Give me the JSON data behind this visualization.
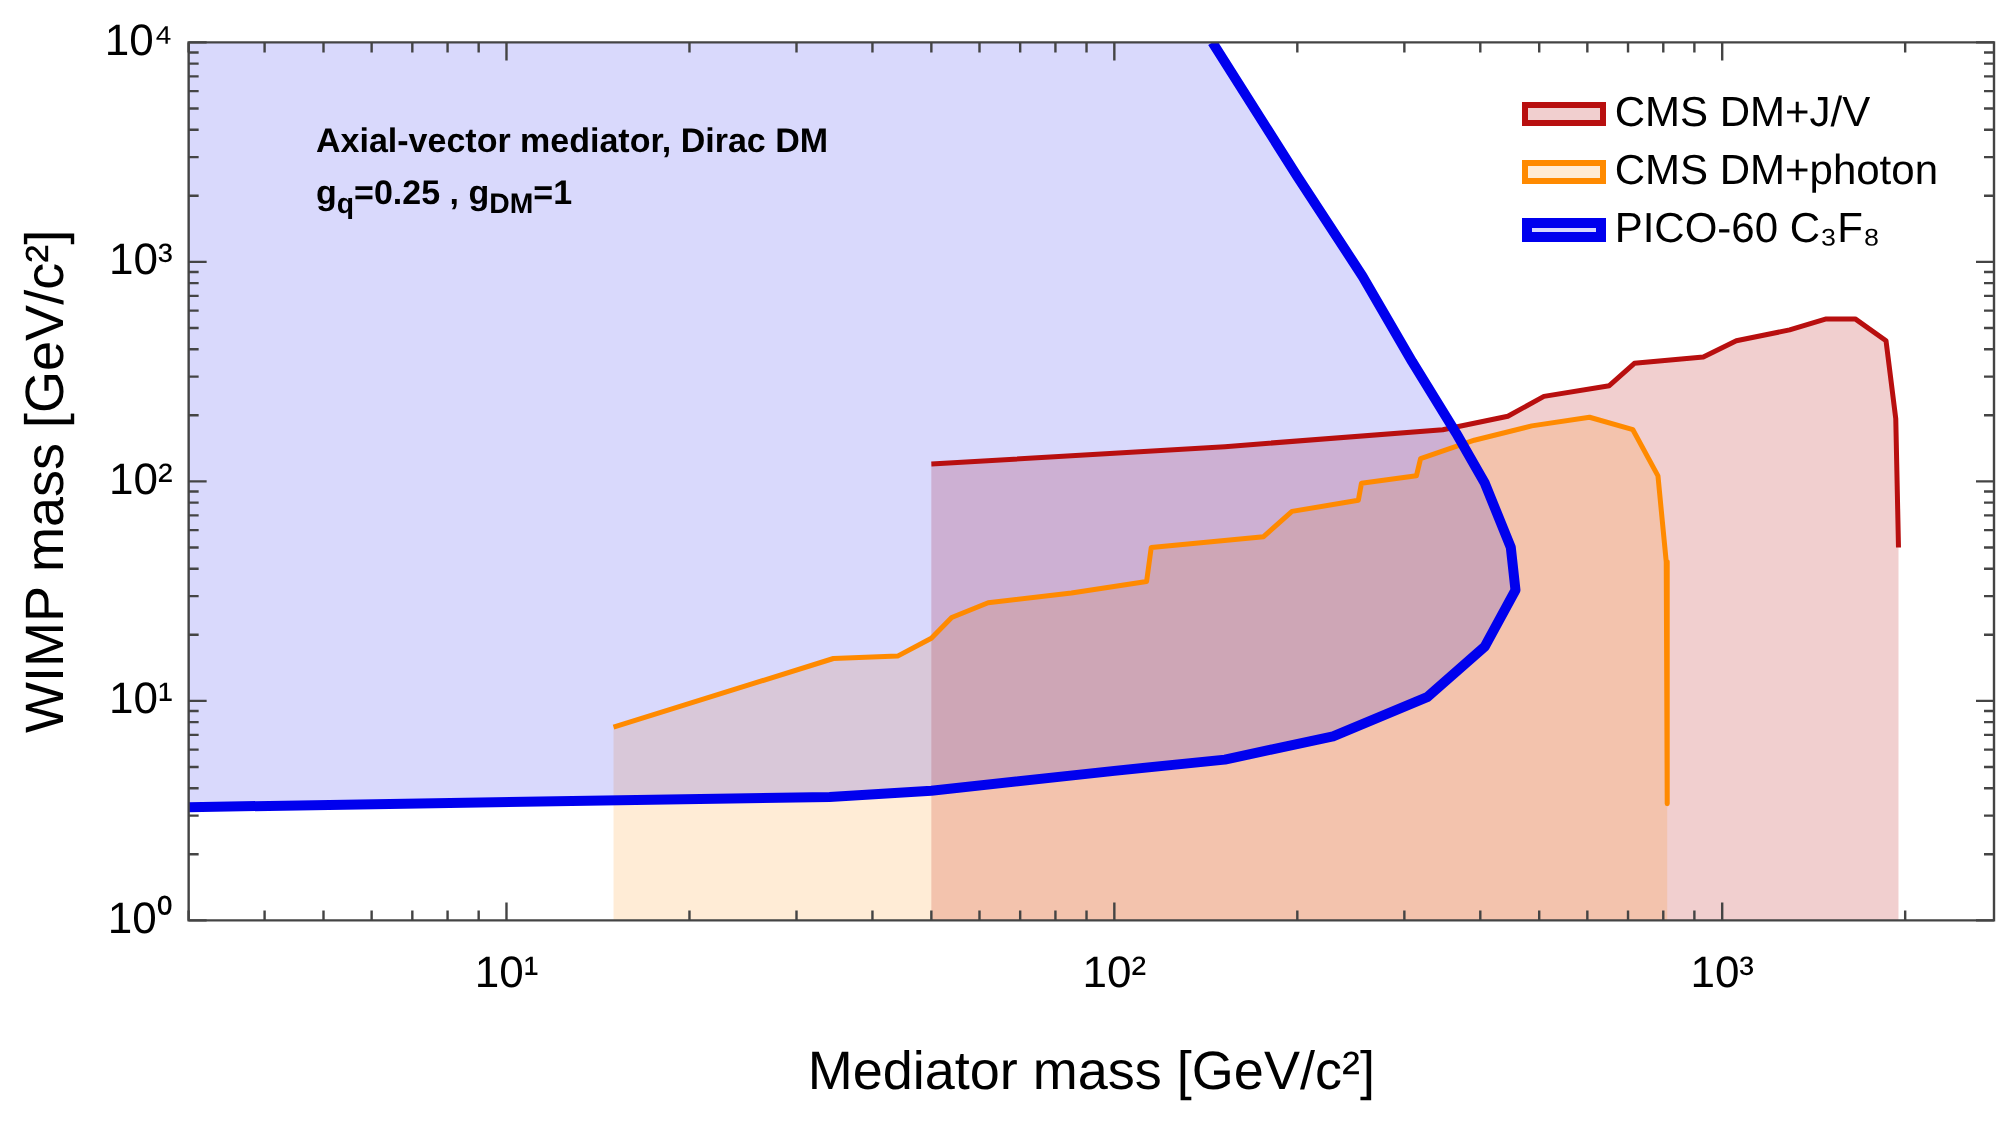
{
  "chart_data": {
    "type": "area",
    "xlabel": "Mediator mass [GeV/c²]",
    "ylabel": "WIMP mass [GeV/c²]",
    "log": "xy",
    "xlim": [
      3,
      2800
    ],
    "ylim": [
      1,
      10000
    ],
    "xticks": [
      {
        "value": 10,
        "label": "10¹"
      },
      {
        "value": 100,
        "label": "10²"
      },
      {
        "value": 1000,
        "label": "10³"
      }
    ],
    "yticks": [
      {
        "value": 1,
        "label": "10⁰"
      },
      {
        "value": 10,
        "label": "10¹"
      },
      {
        "value": 100,
        "label": "10²"
      },
      {
        "value": 1000,
        "label": "10³"
      },
      {
        "value": 10000,
        "label": "10⁴"
      }
    ],
    "grid": false,
    "legend": "top right",
    "marker": "none",
    "annotations": [
      "Axial-vector mediator, Dirac DM",
      "g$_{q}$=0.25 , g$_{DM}$=1"
    ],
    "series": [
      {
        "name": "CMS DM+J/V",
        "type": "area",
        "color": "#b80f0f",
        "x": [
          50,
          152,
          347,
          444,
          509,
          652,
          717,
          931,
          1055,
          1291,
          1483,
          1655,
          1860,
          1930,
          1950
        ],
        "values": [
          120,
          144,
          172,
          198,
          244,
          273,
          345,
          369,
          437,
          490,
          550,
          550,
          437,
          193,
          50
        ]
      },
      {
        "name": "CMS DM+photon",
        "type": "area",
        "color": "#ff8a00",
        "x": [
          15,
          34.5,
          44,
          50,
          54,
          62,
          85,
          113,
          115,
          176,
          196,
          252,
          255,
          314,
          319,
          391,
          486,
          605,
          713,
          784,
          809,
          812
        ],
        "values": [
          7.6,
          15.6,
          16,
          19.3,
          24,
          28,
          31,
          35,
          50,
          56,
          73,
          82,
          98,
          106,
          127,
          154,
          179,
          196,
          172,
          106,
          43,
          3.4
        ]
      },
      {
        "name": "PICO-60 C₃F₈",
        "type": "area",
        "color": "#0000ee",
        "x": [
          3,
          3,
          34,
          50,
          100,
          152,
          229,
          327,
          407,
          457,
          449,
          407,
          365,
          309,
          256,
          200,
          145
        ],
        "values": [
          10000,
          3.28,
          3.65,
          3.9,
          4.8,
          5.4,
          6.9,
          10.4,
          17.7,
          32,
          50,
          98,
          166,
          351,
          861,
          2450,
          10000
        ]
      }
    ]
  }
}
